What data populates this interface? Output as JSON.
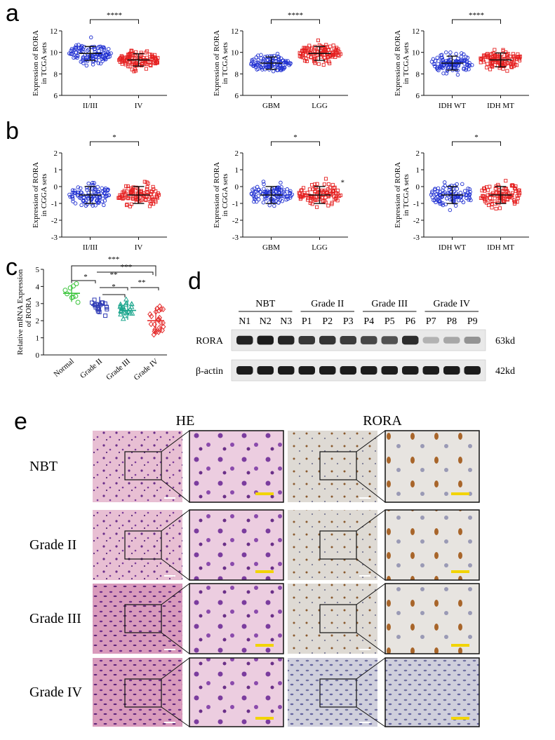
{
  "figure": {
    "panel_a": {
      "label": "a",
      "plots": [
        {
          "ylabel_1": "Expression of RORA",
          "ylabel_2": "in TCGA sets",
          "yticks": [
            "12",
            "10",
            "8",
            "6"
          ],
          "groups": [
            "II/III",
            "IV"
          ],
          "sig": "****"
        },
        {
          "ylabel_1": "Expression of RORA",
          "ylabel_2": "in TCGA sets",
          "yticks": [
            "12",
            "10",
            "8",
            "6"
          ],
          "groups": [
            "GBM",
            "LGG"
          ],
          "sig": "****"
        },
        {
          "ylabel_1": "Expression of RORA",
          "ylabel_2": "in TCGA sets",
          "yticks": [
            "12",
            "10",
            "8",
            "6"
          ],
          "groups": [
            "IDH WT",
            "IDH MT"
          ],
          "sig": "****"
        }
      ]
    },
    "panel_b": {
      "label": "b",
      "plots": [
        {
          "ylabel_1": "Expression of RORA",
          "ylabel_2": "in CGGA sets",
          "yticks": [
            "2",
            "1",
            "0",
            "-1",
            "-2",
            "-3"
          ],
          "groups": [
            "II/III",
            "IV"
          ],
          "sig": "*",
          "side_mark": ""
        },
        {
          "ylabel_1": "Expression of RORA",
          "ylabel_2": "in CGGA sets",
          "yticks": [
            "2",
            "1",
            "0",
            "-1",
            "-2",
            "-3"
          ],
          "groups": [
            "GBM",
            "LGG"
          ],
          "sig": "*",
          "side_mark": "*"
        },
        {
          "ylabel_1": "Expression of RORA",
          "ylabel_2": "in TCGA sets",
          "yticks": [
            "2",
            "1",
            "0",
            "-1",
            "-2",
            "-3"
          ],
          "groups": [
            "IDH WT",
            "IDH MT"
          ],
          "sig": "*",
          "side_mark": ""
        }
      ]
    },
    "panel_c": {
      "label": "c",
      "ylabel_1": "Relative mRNA Expression",
      "ylabel_2": "of RORA",
      "yticks": [
        "5",
        "4",
        "3",
        "2",
        "1",
        "0"
      ],
      "groups": [
        "Normal",
        "Grade II",
        "Grade III",
        "Grade IV"
      ],
      "sig_labels": [
        "***",
        "*",
        "**",
        "***",
        "*",
        "**"
      ],
      "colors": [
        "#39c43a",
        "#2f3bb5",
        "#1aa58c",
        "#e53030"
      ]
    },
    "panel_d": {
      "label": "d",
      "groups": [
        "NBT",
        "Grade II",
        "Grade III",
        "Grade IV"
      ],
      "lanes": [
        "N1",
        "N2",
        "N3",
        "P1",
        "P2",
        "P3",
        "P4",
        "P5",
        "P6",
        "P7",
        "P8",
        "P9"
      ],
      "proteins": [
        "RORA",
        "β-actin"
      ],
      "sizes": [
        "63kd",
        "42kd"
      ],
      "rora_intensity": [
        0.92,
        0.95,
        0.9,
        0.82,
        0.84,
        0.8,
        0.75,
        0.7,
        0.88,
        0.25,
        0.3,
        0.4
      ]
    },
    "panel_e": {
      "label": "e",
      "col_headers": [
        "HE",
        "RORA"
      ],
      "rows": [
        "NBT",
        "Grade II",
        "Grade III",
        "Grade IV"
      ],
      "scale_bar_color": "#f2d400"
    }
  }
}
